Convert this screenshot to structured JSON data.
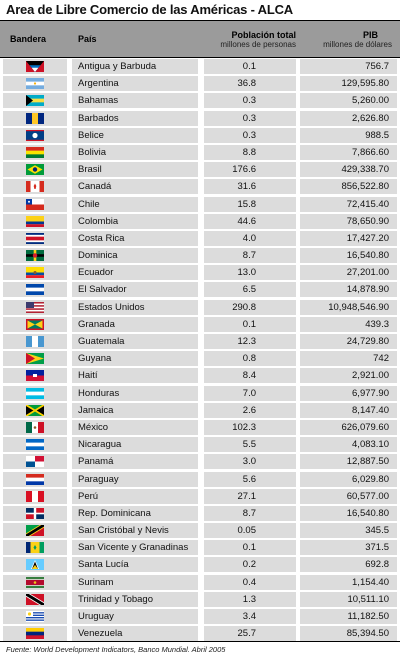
{
  "title": "Area de Libre Comercio de las Américas - ALCA",
  "headers": {
    "flag": "Bandera",
    "country": "País",
    "population": "Población total",
    "population_sub": "millones de personas",
    "gdp": "PIB",
    "gdp_sub": "millones de dólares"
  },
  "rows": [
    {
      "country": "Antigua y Barbuda",
      "population": "0.1",
      "gdp": "756.7",
      "flag": "antigua-flag"
    },
    {
      "country": "Argentina",
      "population": "36.8",
      "gdp": "129,595.80",
      "flag": "argentina-flag"
    },
    {
      "country": "Bahamas",
      "population": "0.3",
      "gdp": "5,260.00",
      "flag": "bahamas-flag"
    },
    {
      "country": "Barbados",
      "population": "0.3",
      "gdp": "2,626.80",
      "flag": "barbados-flag"
    },
    {
      "country": "Belice",
      "population": "0.3",
      "gdp": "988.5",
      "flag": "belize-flag"
    },
    {
      "country": "Bolivia",
      "population": "8.8",
      "gdp": "7,866.60",
      "flag": "bolivia-flag"
    },
    {
      "country": "Brasil",
      "population": "176.6",
      "gdp": "429,338.70",
      "flag": "brazil-flag"
    },
    {
      "country": "Canadá",
      "population": "31.6",
      "gdp": "856,522.80",
      "flag": "canada-flag"
    },
    {
      "country": "Chile",
      "population": "15.8",
      "gdp": "72,415.40",
      "flag": "chile-flag"
    },
    {
      "country": "Colombia",
      "population": "44.6",
      "gdp": "78,650.90",
      "flag": "colombia-flag"
    },
    {
      "country": "Costa Rica",
      "population": "4.0",
      "gdp": "17,427.20",
      "flag": "costa-rica-flag"
    },
    {
      "country": "Dominica",
      "population": "8.7",
      "gdp": "16,540.80",
      "flag": "dominica-flag"
    },
    {
      "country": "Ecuador",
      "population": "13.0",
      "gdp": "27,201.00",
      "flag": "ecuador-flag"
    },
    {
      "country": "El Salvador",
      "population": "6.5",
      "gdp": "14,878.90",
      "flag": "el-salvador-flag"
    },
    {
      "country": "Estados Unidos",
      "population": "290.8",
      "gdp": "10,948,546.90",
      "flag": "usa-flag"
    },
    {
      "country": "Granada",
      "population": "0.1",
      "gdp": "439.3",
      "flag": "grenada-flag"
    },
    {
      "country": "Guatemala",
      "population": "12.3",
      "gdp": "24,729.80",
      "flag": "guatemala-flag"
    },
    {
      "country": "Guyana",
      "population": "0.8",
      "gdp": "742",
      "flag": "guyana-flag"
    },
    {
      "country": "Haití",
      "population": "8.4",
      "gdp": "2,921.00",
      "flag": "haiti-flag"
    },
    {
      "country": "Honduras",
      "population": "7.0",
      "gdp": "6,977.90",
      "flag": "honduras-flag"
    },
    {
      "country": "Jamaica",
      "population": "2.6",
      "gdp": "8,147.40",
      "flag": "jamaica-flag"
    },
    {
      "country": "México",
      "population": "102.3",
      "gdp": "626,079.60",
      "flag": "mexico-flag"
    },
    {
      "country": "Nicaragua",
      "population": "5.5",
      "gdp": "4,083.10",
      "flag": "nicaragua-flag"
    },
    {
      "country": "Panamá",
      "population": "3.0",
      "gdp": "12,887.50",
      "flag": "panama-flag"
    },
    {
      "country": "Paraguay",
      "population": "5.6",
      "gdp": "6,029.80",
      "flag": "paraguay-flag"
    },
    {
      "country": "Perú",
      "population": "27.1",
      "gdp": "60,577.00",
      "flag": "peru-flag"
    },
    {
      "country": "Rep. Dominicana",
      "population": "8.7",
      "gdp": "16,540.80",
      "flag": "dominican-republic-flag"
    },
    {
      "country": "San Cristóbal y Nevis",
      "population": "0.05",
      "gdp": "345.5",
      "flag": "saint-kitts-flag"
    },
    {
      "country": "San Vicente y Granadinas",
      "population": "0.1",
      "gdp": "371.5",
      "flag": "saint-vincent-flag"
    },
    {
      "country": "Santa Lucía",
      "population": "0.2",
      "gdp": "692.8",
      "flag": "saint-lucia-flag"
    },
    {
      "country": "Surinam",
      "population": "0.4",
      "gdp": "1,154.40",
      "flag": "suriname-flag"
    },
    {
      "country": "Trinidad y Tobago",
      "population": "1.3",
      "gdp": "10,511.10",
      "flag": "trinidad-flag"
    },
    {
      "country": "Uruguay",
      "population": "3.4",
      "gdp": "11,182.50",
      "flag": "uruguay-flag"
    },
    {
      "country": "Venezuela",
      "population": "25.7",
      "gdp": "85,394.50",
      "flag": "venezuela-flag"
    }
  ],
  "source": "Fuente: World Development Indicators, Banco Mundial. Abril 2005"
}
